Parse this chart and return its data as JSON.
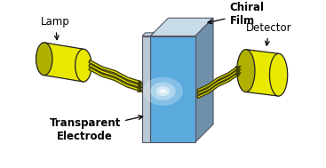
{
  "bg_color": "#ffffff",
  "lamp_color": "#e8e800",
  "lamp_dark": "#b0b000",
  "lamp_edge": "#222222",
  "detector_color": "#e8e800",
  "detector_dark": "#b0b000",
  "detector_edge": "#222222",
  "panel_front_grad_top": "#a8d0f0",
  "panel_front_grad_bot": "#5aaae0",
  "panel_side_color": "#8090a8",
  "panel_top_color": "#c8d8e8",
  "panel_thin_color": "#c0ccd8",
  "panel_thin_side": "#909aa8",
  "lightning_fill": "#e8e800",
  "lightning_edge": "#404000",
  "arrow_color": "#111111",
  "label_lamp": "Lamp",
  "label_detector": "Detector",
  "label_chiral": "Chiral\nFilm",
  "label_electrode": "Transparent\nElectrode",
  "fontsize": 8.5,
  "figw": 3.67,
  "figh": 1.89
}
